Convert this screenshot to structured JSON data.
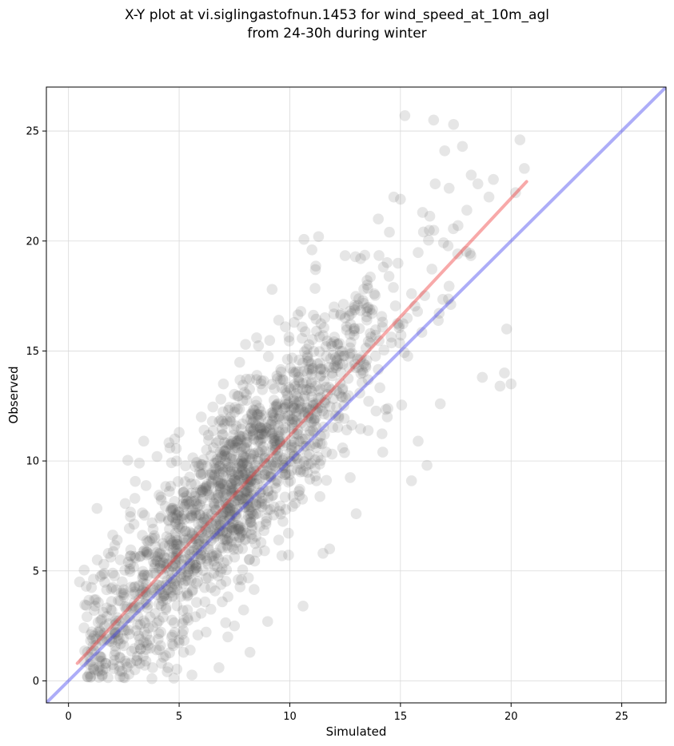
{
  "chart_data": {
    "type": "scatter",
    "title_line1": "X-Y plot at vi.siglingastofnun.1453 for wind_speed_at_10m_agl",
    "title_line2": "from 24-30h during winter",
    "xlabel": "Simulated",
    "ylabel": "Observed",
    "xlim": [
      -1.0,
      27.0
    ],
    "ylim": [
      -1.0,
      27.0
    ],
    "xticks": [
      0,
      5,
      10,
      15,
      20,
      25
    ],
    "yticks": [
      0,
      5,
      10,
      15,
      20,
      25
    ],
    "grid": true,
    "point_color": "#555555",
    "point_alpha": 0.15,
    "point_count": 1600,
    "regression_line": {
      "color": "#ee3333",
      "x": [
        0.4,
        20.7
      ],
      "y": [
        0.8,
        22.7
      ]
    },
    "identity_line": {
      "color": "#3333ee",
      "x": [
        -1.0,
        27.0
      ],
      "y": [
        -1.0,
        27.0
      ]
    },
    "sample_points": [
      [
        0.5,
        4.5
      ],
      [
        0.8,
        4.3
      ],
      [
        1.0,
        0.2
      ],
      [
        1.0,
        2.1
      ],
      [
        1.2,
        3.4
      ],
      [
        1.3,
        5.5
      ],
      [
        1.5,
        0.9
      ],
      [
        1.6,
        5.3
      ],
      [
        1.8,
        5.8
      ],
      [
        2.0,
        4.9
      ],
      [
        2.2,
        6.4
      ],
      [
        2.5,
        1.6
      ],
      [
        2.7,
        5.4
      ],
      [
        3.0,
        8.3
      ],
      [
        3.2,
        9.9
      ],
      [
        3.4,
        10.9
      ],
      [
        3.5,
        0.9
      ],
      [
        3.8,
        0.6
      ],
      [
        4.0,
        10.2
      ],
      [
        4.2,
        0.8
      ],
      [
        4.5,
        0.6
      ],
      [
        4.8,
        11.0
      ],
      [
        5.0,
        11.3
      ],
      [
        5.2,
        1.3
      ],
      [
        5.5,
        1.4
      ],
      [
        6.0,
        12.0
      ],
      [
        6.5,
        11.8
      ],
      [
        6.8,
        0.6
      ],
      [
        7.0,
        13.5
      ],
      [
        7.2,
        2.0
      ],
      [
        7.5,
        2.5
      ],
      [
        8.0,
        15.3
      ],
      [
        8.2,
        1.3
      ],
      [
        8.5,
        15.6
      ],
      [
        9.0,
        2.7
      ],
      [
        9.2,
        17.8
      ],
      [
        9.5,
        16.4
      ],
      [
        9.8,
        16.1
      ],
      [
        10.2,
        16.3
      ],
      [
        10.5,
        16.8
      ],
      [
        10.6,
        3.4
      ],
      [
        11.0,
        19.6
      ],
      [
        11.3,
        20.2
      ],
      [
        11.5,
        5.8
      ],
      [
        11.8,
        6.0
      ],
      [
        12.0,
        17.0
      ],
      [
        12.5,
        16.5
      ],
      [
        13.0,
        7.6
      ],
      [
        13.2,
        19.2
      ],
      [
        13.5,
        18.0
      ],
      [
        14.0,
        21.0
      ],
      [
        14.2,
        10.4
      ],
      [
        14.5,
        20.4
      ],
      [
        14.7,
        22.0
      ],
      [
        15.0,
        21.9
      ],
      [
        15.2,
        25.7
      ],
      [
        15.5,
        9.1
      ],
      [
        15.8,
        10.9
      ],
      [
        16.0,
        21.3
      ],
      [
        16.2,
        9.8
      ],
      [
        16.5,
        25.5
      ],
      [
        16.8,
        12.6
      ],
      [
        17.0,
        24.1
      ],
      [
        17.2,
        22.4
      ],
      [
        17.4,
        25.3
      ],
      [
        17.6,
        20.7
      ],
      [
        17.8,
        24.3
      ],
      [
        18.0,
        21.4
      ],
      [
        18.2,
        23.0
      ],
      [
        18.5,
        22.6
      ],
      [
        18.7,
        13.8
      ],
      [
        19.0,
        22.0
      ],
      [
        19.2,
        22.8
      ],
      [
        19.5,
        13.4
      ],
      [
        19.7,
        14.0
      ],
      [
        19.8,
        16.0
      ],
      [
        20.0,
        13.5
      ],
      [
        20.2,
        22.2
      ],
      [
        20.4,
        24.6
      ],
      [
        20.6,
        23.3
      ]
    ]
  }
}
